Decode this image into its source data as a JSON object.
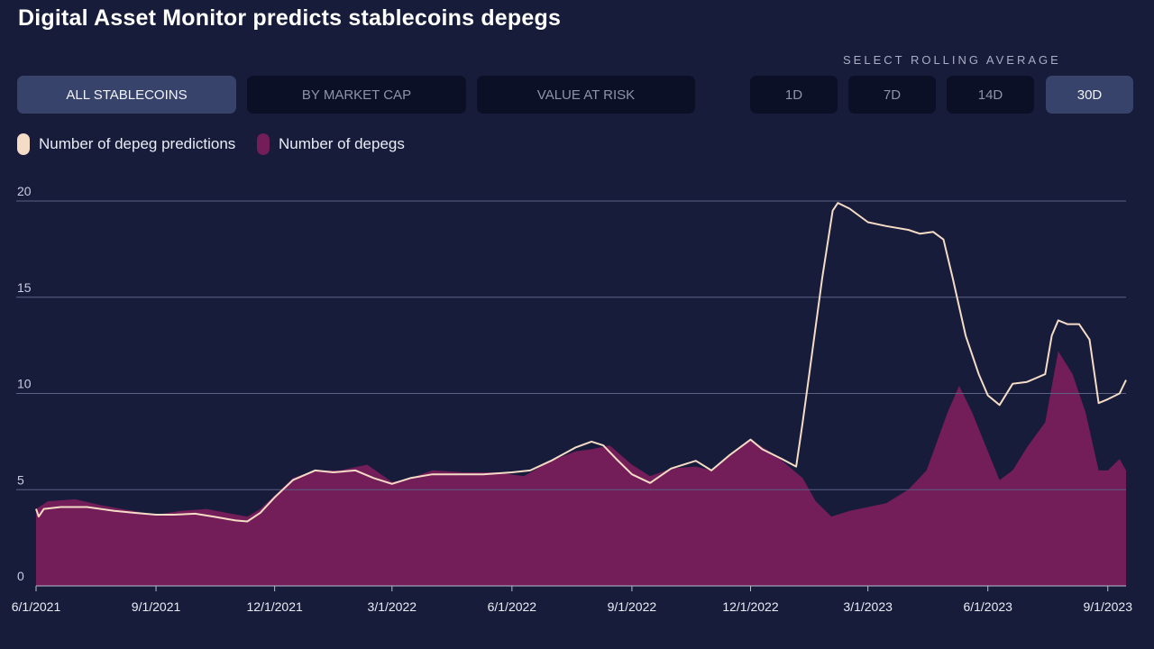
{
  "title": "Digital Asset Monitor predicts stablecoins depegs",
  "rolling_label": "SELECT ROLLING AVERAGE",
  "view_buttons": [
    "ALL STABLECOINS",
    "BY MARKET CAP",
    "VALUE AT RISK"
  ],
  "active_view": "ALL STABLECOINS",
  "rolling_buttons": [
    "1D",
    "7D",
    "14D",
    "30D"
  ],
  "active_rolling": "30D",
  "colors": {
    "background": "#161c3a",
    "predictions": "#f5dcc6",
    "depegs": "#731d59",
    "grid": "#5a6183",
    "button_active": "#37436b",
    "button_inactive": "#0b1027"
  },
  "chart_data": {
    "type": "area",
    "series": [
      {
        "name": "Number of depeg predictions",
        "style": "line",
        "points": [
          [
            "2021-06-01",
            4.0
          ],
          [
            "2021-06-03",
            3.6
          ],
          [
            "2021-06-07",
            4.0
          ],
          [
            "2021-06-20",
            4.1
          ],
          [
            "2021-07-10",
            4.1
          ],
          [
            "2021-07-31",
            3.9
          ],
          [
            "2021-08-15",
            3.8
          ],
          [
            "2021-09-01",
            3.7
          ],
          [
            "2021-09-15",
            3.7
          ],
          [
            "2021-10-01",
            3.75
          ],
          [
            "2021-10-15",
            3.6
          ],
          [
            "2021-11-01",
            3.4
          ],
          [
            "2021-11-10",
            3.35
          ],
          [
            "2021-11-20",
            3.8
          ],
          [
            "2021-12-01",
            4.6
          ],
          [
            "2021-12-15",
            5.5
          ],
          [
            "2022-01-01",
            6.0
          ],
          [
            "2022-01-15",
            5.9
          ],
          [
            "2022-02-01",
            6.0
          ],
          [
            "2022-02-15",
            5.6
          ],
          [
            "2022-03-01",
            5.3
          ],
          [
            "2022-03-15",
            5.6
          ],
          [
            "2022-04-01",
            5.8
          ],
          [
            "2022-04-20",
            5.8
          ],
          [
            "2022-05-10",
            5.8
          ],
          [
            "2022-06-01",
            5.9
          ],
          [
            "2022-06-15",
            6.0
          ],
          [
            "2022-07-01",
            6.5
          ],
          [
            "2022-07-20",
            7.2
          ],
          [
            "2022-08-01",
            7.5
          ],
          [
            "2022-08-10",
            7.3
          ],
          [
            "2022-08-20",
            6.6
          ],
          [
            "2022-09-01",
            5.8
          ],
          [
            "2022-09-15",
            5.35
          ],
          [
            "2022-10-01",
            6.1
          ],
          [
            "2022-10-20",
            6.5
          ],
          [
            "2022-11-01",
            6.0
          ],
          [
            "2022-11-15",
            6.8
          ],
          [
            "2022-12-01",
            7.6
          ],
          [
            "2022-12-10",
            7.1
          ],
          [
            "2022-12-25",
            6.6
          ],
          [
            "2023-01-05",
            6.2
          ],
          [
            "2023-01-10",
            8.5
          ],
          [
            "2023-01-15",
            11.0
          ],
          [
            "2023-01-25",
            16.0
          ],
          [
            "2023-02-02",
            19.5
          ],
          [
            "2023-02-06",
            19.9
          ],
          [
            "2023-02-15",
            19.6
          ],
          [
            "2023-03-01",
            18.9
          ],
          [
            "2023-03-15",
            18.7
          ],
          [
            "2023-04-01",
            18.5
          ],
          [
            "2023-04-10",
            18.3
          ],
          [
            "2023-04-20",
            18.4
          ],
          [
            "2023-04-28",
            18.0
          ],
          [
            "2023-05-05",
            16.0
          ],
          [
            "2023-05-15",
            13.0
          ],
          [
            "2023-05-25",
            11.0
          ],
          [
            "2023-06-01",
            9.9
          ],
          [
            "2023-06-10",
            9.4
          ],
          [
            "2023-06-20",
            10.5
          ],
          [
            "2023-07-01",
            10.6
          ],
          [
            "2023-07-15",
            11.0
          ],
          [
            "2023-07-20",
            13.0
          ],
          [
            "2023-07-25",
            13.8
          ],
          [
            "2023-08-01",
            13.6
          ],
          [
            "2023-08-10",
            13.6
          ],
          [
            "2023-08-18",
            12.8
          ],
          [
            "2023-08-25",
            9.5
          ],
          [
            "2023-09-01",
            9.7
          ],
          [
            "2023-09-10",
            10.0
          ],
          [
            "2023-09-15",
            10.7
          ]
        ]
      },
      {
        "name": "Number of depegs",
        "style": "area",
        "points": [
          [
            "2021-06-01",
            4.0
          ],
          [
            "2021-06-10",
            4.4
          ],
          [
            "2021-07-01",
            4.5
          ],
          [
            "2021-07-20",
            4.2
          ],
          [
            "2021-08-10",
            3.95
          ],
          [
            "2021-09-01",
            3.7
          ],
          [
            "2021-09-20",
            3.9
          ],
          [
            "2021-10-10",
            4.0
          ],
          [
            "2021-10-25",
            3.8
          ],
          [
            "2021-11-10",
            3.6
          ],
          [
            "2021-11-20",
            4.0
          ],
          [
            "2021-12-01",
            4.7
          ],
          [
            "2021-12-15",
            5.6
          ],
          [
            "2022-01-01",
            6.0
          ],
          [
            "2022-01-20",
            6.0
          ],
          [
            "2022-02-10",
            6.3
          ],
          [
            "2022-03-01",
            5.4
          ],
          [
            "2022-03-15",
            5.6
          ],
          [
            "2022-04-01",
            6.0
          ],
          [
            "2022-04-25",
            5.9
          ],
          [
            "2022-05-20",
            5.9
          ],
          [
            "2022-06-10",
            5.7
          ],
          [
            "2022-07-01",
            6.5
          ],
          [
            "2022-07-20",
            7.0
          ],
          [
            "2022-08-01",
            7.1
          ],
          [
            "2022-08-15",
            7.3
          ],
          [
            "2022-09-01",
            6.3
          ],
          [
            "2022-09-15",
            5.7
          ],
          [
            "2022-10-01",
            6.1
          ],
          [
            "2022-10-20",
            6.2
          ],
          [
            "2022-11-01",
            6.0
          ],
          [
            "2022-11-20",
            7.0
          ],
          [
            "2022-12-01",
            7.6
          ],
          [
            "2022-12-20",
            6.8
          ],
          [
            "2023-01-10",
            5.6
          ],
          [
            "2023-01-20",
            4.4
          ],
          [
            "2023-02-01",
            3.6
          ],
          [
            "2023-02-15",
            3.9
          ],
          [
            "2023-03-01",
            4.1
          ],
          [
            "2023-03-15",
            4.3
          ],
          [
            "2023-04-01",
            5.0
          ],
          [
            "2023-04-15",
            6.0
          ],
          [
            "2023-05-01",
            9.0
          ],
          [
            "2023-05-10",
            10.4
          ],
          [
            "2023-05-20",
            9.0
          ],
          [
            "2023-06-01",
            7.0
          ],
          [
            "2023-06-10",
            5.5
          ],
          [
            "2023-06-20",
            6.0
          ],
          [
            "2023-07-01",
            7.2
          ],
          [
            "2023-07-15",
            8.5
          ],
          [
            "2023-07-25",
            12.2
          ],
          [
            "2023-08-05",
            11.0
          ],
          [
            "2023-08-15",
            9.0
          ],
          [
            "2023-08-25",
            6.0
          ],
          [
            "2023-09-01",
            6.0
          ],
          [
            "2023-09-10",
            6.6
          ],
          [
            "2023-09-15",
            6.0
          ]
        ]
      }
    ],
    "y_ticks": [
      "0",
      "5",
      "10",
      "15",
      "20"
    ],
    "ylim": [
      0,
      20
    ],
    "x_ticks": [
      "6/1/2021",
      "9/1/2021",
      "12/1/2021",
      "3/1/2022",
      "6/1/2022",
      "9/1/2022",
      "12/1/2022",
      "3/1/2023",
      "6/1/2023",
      "9/1/2023"
    ],
    "xlim": [
      "2021-06-01",
      "2023-09-15"
    ],
    "grid": true,
    "legend_position": "top-left"
  }
}
